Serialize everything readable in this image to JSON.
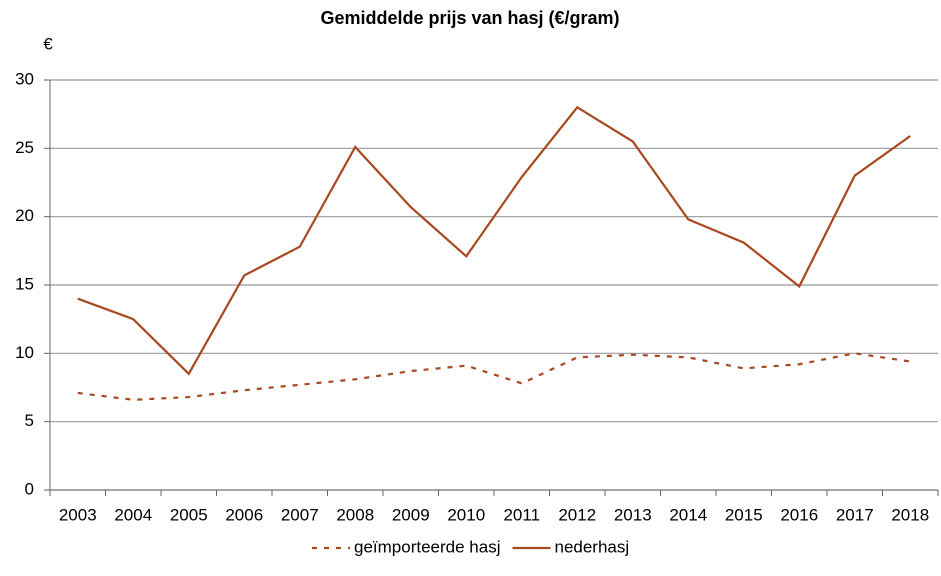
{
  "chart_data": {
    "type": "line",
    "title": "Gemiddelde prijs van hasj (€/gram)",
    "y_label": "€",
    "categories": [
      "2003",
      "2004",
      "2005",
      "2006",
      "2007",
      "2008",
      "2009",
      "2010",
      "2011",
      "2012",
      "2013",
      "2014",
      "2015",
      "2016",
      "2017",
      "2018"
    ],
    "series": [
      {
        "name": "geïmporteerde hasj",
        "color": "#a8481e",
        "line_style": "dashed",
        "values": [
          7.1,
          6.6,
          6.8,
          7.3,
          7.7,
          8.1,
          8.7,
          9.1,
          7.8,
          9.7,
          9.9,
          9.7,
          8.9,
          9.2,
          10.0,
          9.4
        ]
      },
      {
        "name": "nederhasj",
        "color": "#a8481e",
        "line_style": "solid",
        "values": [
          14.0,
          12.5,
          8.5,
          15.7,
          17.8,
          25.1,
          20.7,
          17.1,
          22.9,
          28.0,
          25.5,
          19.8,
          18.1,
          14.9,
          23.0,
          25.9
        ]
      }
    ],
    "ylim": [
      0,
      30
    ],
    "yticks": [
      0,
      5,
      10,
      15,
      20,
      25,
      30
    ],
    "grid": true,
    "legend": "bottom"
  }
}
